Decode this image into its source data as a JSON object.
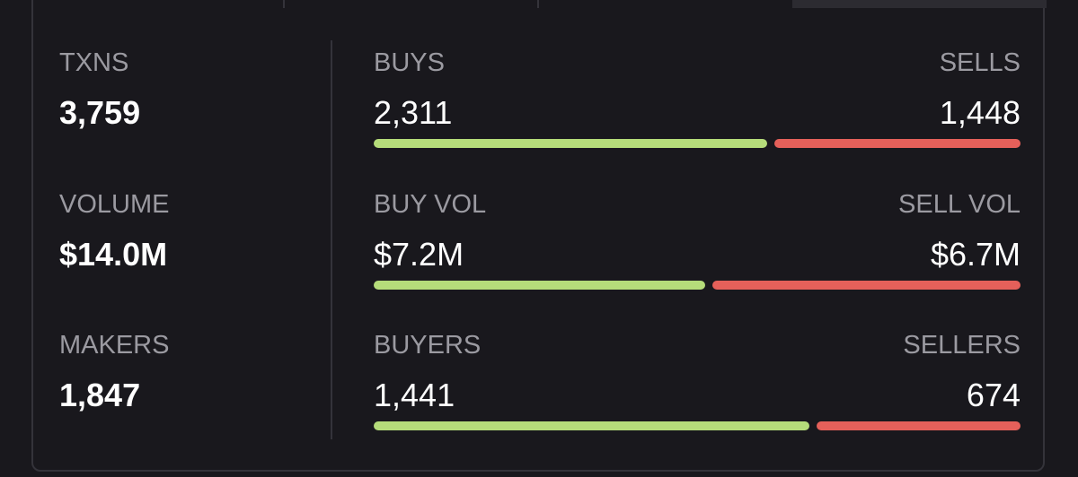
{
  "stats": [
    {
      "label": "TXNS",
      "value": "3,759"
    },
    {
      "label": "VOLUME",
      "value": "$14.0M"
    },
    {
      "label": "MAKERS",
      "value": "1,847"
    }
  ],
  "splits": [
    {
      "left_label": "BUYS",
      "right_label": "SELLS",
      "left": {
        "value": 2311,
        "label": "2,311"
      },
      "right": {
        "value": 1448,
        "label": "1,448"
      }
    },
    {
      "left_label": "BUY VOL",
      "right_label": "SELL VOL",
      "left": {
        "value": 7200000,
        "label": "$7.2M"
      },
      "right": {
        "value": 6700000,
        "label": "$6.7M"
      }
    },
    {
      "left_label": "BUYERS",
      "right_label": "SELLERS",
      "left": {
        "value": 1441,
        "label": "1,441"
      },
      "right": {
        "value": 674,
        "label": "674"
      }
    }
  ]
}
